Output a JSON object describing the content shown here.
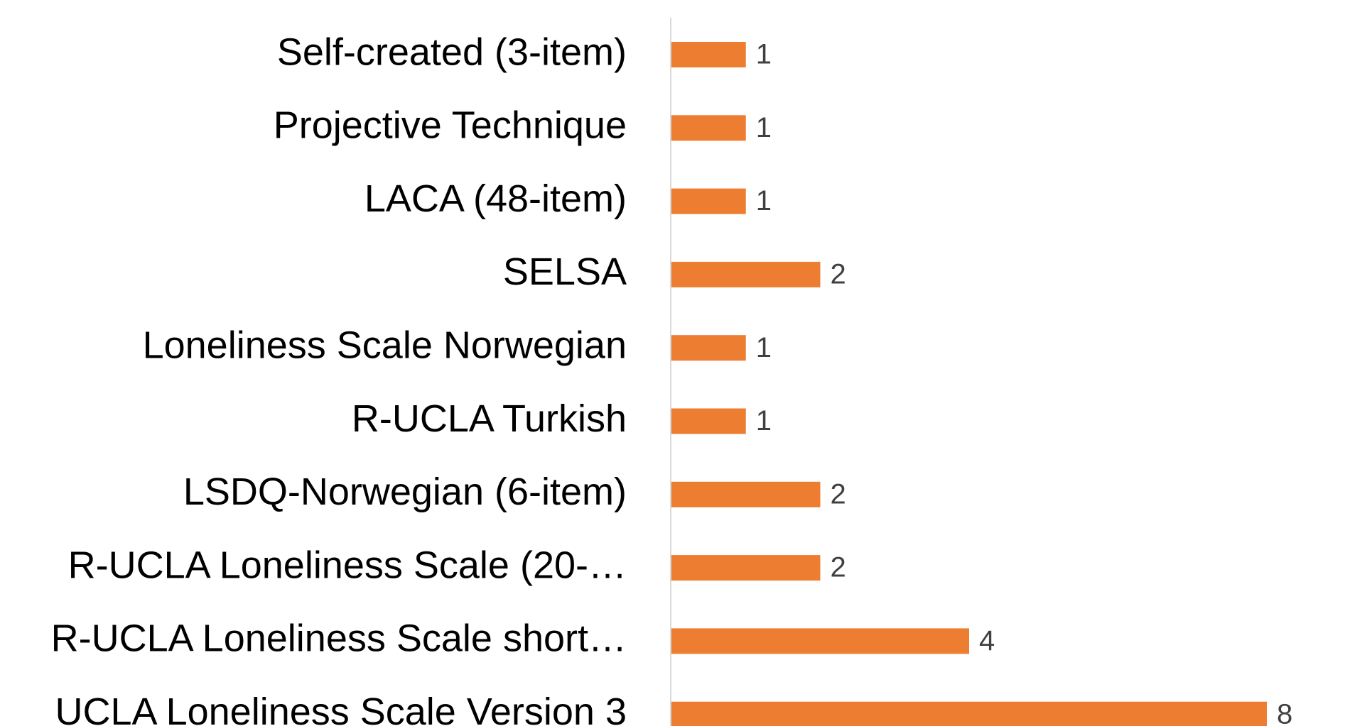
{
  "chart_data": {
    "type": "bar",
    "orientation": "horizontal",
    "categories": [
      "Self-created (3-item)",
      "Projective Technique",
      "LACA (48-item)",
      "SELSA",
      "Loneliness Scale Norwegian",
      "R-UCLA Turkish",
      "LSDQ-Norwegian (6-item)",
      "R-UCLA Loneliness Scale (20-…",
      "R-UCLA Loneliness Scale short…",
      "UCLA Loneliness Scale Version 3"
    ],
    "values": [
      1,
      1,
      1,
      2,
      1,
      1,
      2,
      2,
      4,
      8
    ],
    "color": "#ed7d31",
    "xlim": [
      0,
      8
    ]
  }
}
